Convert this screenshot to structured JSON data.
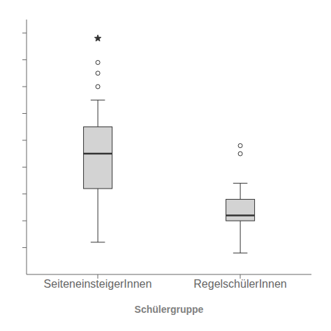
{
  "chart_data": {
    "type": "box",
    "xlabel": "Schülergruppe",
    "categories": [
      "SeiteneinsteigerInnen",
      "RegelschülerInnen"
    ],
    "boxes": [
      {
        "q1": 4.2,
        "q3": 6.5,
        "median": 5.5,
        "whisker_low": 2.2,
        "whisker_high": 7.5,
        "outliers": [
          8.0,
          8.5,
          8.9
        ],
        "far_outliers": [
          9.8
        ]
      },
      {
        "q1": 3.0,
        "q3": 3.8,
        "median": 3.2,
        "whisker_low": 1.8,
        "whisker_high": 4.4,
        "outliers": [
          5.5,
          5.8
        ],
        "far_outliers": []
      }
    ],
    "color": "#d3d3d3",
    "ylim": [
      1.0,
      10.5
    ],
    "yticks": [
      2,
      3,
      4,
      5,
      6,
      7,
      8,
      9,
      10
    ],
    "grid": false,
    "tick_labels": "x"
  }
}
